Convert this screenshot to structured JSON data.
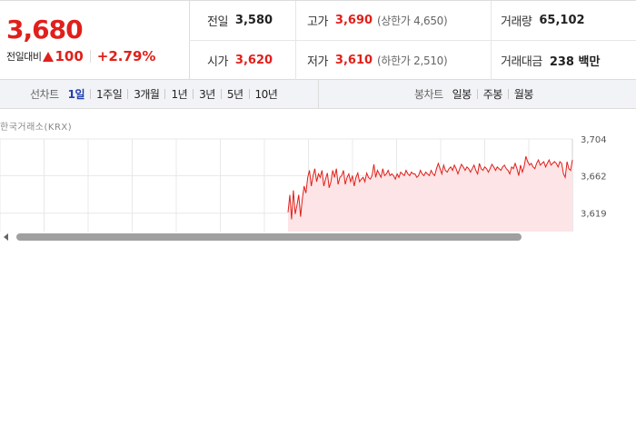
{
  "summary": {
    "current_price": "3,680",
    "change_label": "전일대비",
    "change_value": "100",
    "change_rate": "+2.79%",
    "up_color": "#e0201b"
  },
  "info": {
    "prev_close_label": "전일",
    "prev_close": "3,580",
    "high_label": "고가",
    "high": "3,690",
    "upper_limit": "(상한가 4,650)",
    "volume_label": "거래량",
    "volume": "65,102",
    "open_label": "시가",
    "open": "3,620",
    "low_label": "저가",
    "low": "3,610",
    "lower_limit": "(하한가 2,510)",
    "amount_label": "거래대금",
    "amount": "238 백만"
  },
  "line_tabs": {
    "title": "선차트",
    "items": [
      "1일",
      "1주일",
      "3개월",
      "1년",
      "3년",
      "5년",
      "10년"
    ],
    "active_index": 0
  },
  "candle_tabs": {
    "title": "봉차트",
    "items": [
      "일봉",
      "주봉",
      "월봉"
    ]
  },
  "source_label": "한국거래소(KRX)",
  "icons": {
    "scroll_left": "triangle-left-icon",
    "change_arrow": "triangle-up-icon"
  },
  "chart_data": {
    "type": "line",
    "series_color": "#e0201b",
    "fill_color": "#fde4e6",
    "ylim": [
      3600,
      3704
    ],
    "y_ticks": [
      "3,704",
      "3,662",
      "3,619"
    ],
    "y_tick_values": [
      3704,
      3662,
      3619
    ],
    "grid": true,
    "x": [
      0,
      1,
      2,
      3,
      4,
      5,
      6,
      7,
      8,
      9,
      10,
      11,
      12,
      13,
      14,
      15,
      16,
      17,
      18,
      19,
      20,
      21,
      22,
      23,
      24,
      25,
      26,
      27,
      28,
      29,
      30,
      31,
      32,
      33,
      34,
      35,
      36,
      37,
      38,
      39,
      40,
      41,
      42,
      43,
      44,
      45,
      46,
      47,
      48,
      49,
      50,
      51,
      52,
      53,
      54,
      55,
      56,
      57,
      58,
      59,
      60,
      61,
      62,
      63,
      64,
      65,
      66,
      67,
      68,
      69,
      70,
      71,
      72,
      73,
      74,
      75,
      76,
      77,
      78,
      79,
      80,
      81,
      82,
      83,
      84,
      85,
      86,
      87,
      88,
      89,
      90,
      91,
      92,
      93,
      94,
      95,
      96,
      97,
      98,
      99,
      100,
      101,
      102,
      103,
      104,
      105,
      106,
      107,
      108,
      109,
      110,
      111,
      112,
      113,
      114,
      115,
      116,
      117,
      118,
      119,
      120,
      121,
      122,
      123,
      124,
      125,
      126,
      127,
      128,
      129,
      130,
      131,
      132,
      133,
      134,
      135,
      136,
      137,
      138,
      139,
      140,
      141,
      142,
      143,
      144,
      145,
      146,
      147,
      148,
      149,
      150,
      151,
      152,
      153,
      154,
      155,
      156,
      157,
      158,
      159
    ],
    "values": [
      3620,
      3640,
      3612,
      3645,
      3618,
      3628,
      3640,
      3615,
      3635,
      3650,
      3642,
      3660,
      3668,
      3650,
      3662,
      3670,
      3655,
      3664,
      3660,
      3668,
      3650,
      3658,
      3665,
      3648,
      3655,
      3668,
      3660,
      3670,
      3652,
      3660,
      3662,
      3668,
      3652,
      3660,
      3664,
      3655,
      3662,
      3650,
      3660,
      3665,
      3655,
      3658,
      3660,
      3655,
      3665,
      3660,
      3658,
      3662,
      3675,
      3660,
      3668,
      3664,
      3660,
      3670,
      3662,
      3664,
      3668,
      3662,
      3664,
      3662,
      3658,
      3664,
      3660,
      3666,
      3664,
      3662,
      3668,
      3664,
      3662,
      3666,
      3664,
      3664,
      3660,
      3662,
      3668,
      3664,
      3662,
      3666,
      3664,
      3662,
      3668,
      3664,
      3662,
      3670,
      3676,
      3670,
      3664,
      3674,
      3668,
      3666,
      3670,
      3672,
      3668,
      3674,
      3670,
      3664,
      3670,
      3675,
      3672,
      3668,
      3672,
      3670,
      3666,
      3670,
      3674,
      3668,
      3664,
      3676,
      3670,
      3668,
      3672,
      3670,
      3666,
      3670,
      3675,
      3672,
      3668,
      3672,
      3670,
      3668,
      3672,
      3674,
      3670,
      3668,
      3664,
      3672,
      3670,
      3676,
      3670,
      3662,
      3674,
      3666,
      3672,
      3684,
      3678,
      3674,
      3676,
      3672,
      3670,
      3676,
      3680,
      3674,
      3676,
      3678,
      3672,
      3676,
      3680,
      3674,
      3676,
      3678,
      3676,
      3672,
      3678,
      3676,
      3664,
      3660,
      3678,
      3670,
      3668,
      3680
    ]
  }
}
